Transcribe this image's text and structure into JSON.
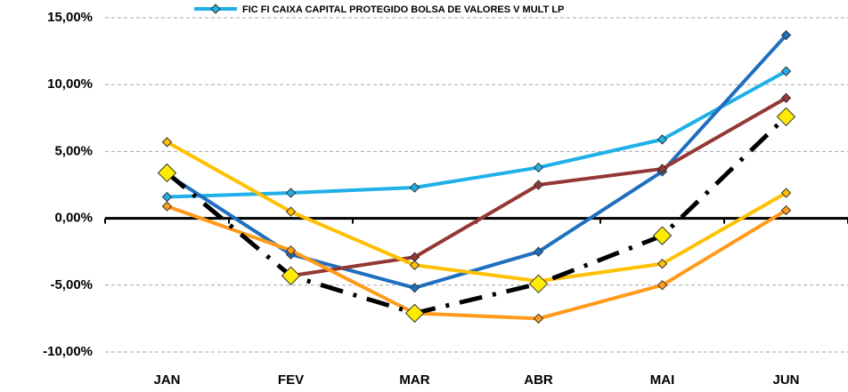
{
  "chart_data": {
    "type": "line",
    "categories": [
      "JAN",
      "FEV",
      "MAR",
      "ABR",
      "MAI",
      "JUN"
    ],
    "series": [
      {
        "name": "FIC FI CAIXA CAPITAL PROTEGIDO BOLSA DE VALORES V MULT LP",
        "color": "#1fb0e8",
        "values": [
          1.6,
          1.9,
          2.3,
          3.8,
          5.9,
          11.0
        ]
      },
      {
        "color": "#1f6fbf",
        "values": [
          3.3,
          -2.7,
          -5.2,
          -2.5,
          3.5,
          13.7
        ]
      },
      {
        "color": "#953735",
        "values": [
          null,
          -4.3,
          -2.9,
          2.5,
          3.7,
          9.0
        ]
      },
      {
        "color": "#ffc000",
        "values": [
          5.7,
          0.5,
          -3.5,
          -4.7,
          -3.4,
          1.9
        ]
      },
      {
        "color": "#ff9a1a",
        "values": [
          0.9,
          -2.4,
          -7.1,
          -7.5,
          -5.0,
          0.6
        ]
      },
      {
        "color": "#000000",
        "dash": "dashdot",
        "marker_color": "#ffeb00",
        "marker_size": "large",
        "values": [
          3.4,
          -4.3,
          -7.1,
          -4.9,
          -1.3,
          7.6
        ]
      }
    ],
    "ylim": [
      -10,
      15
    ],
    "yticks": [
      {
        "value": -10,
        "label": "-10,00%"
      },
      {
        "value": -5,
        "label": "-5,00%"
      },
      {
        "value": 0,
        "label": "0,00%"
      },
      {
        "value": 5,
        "label": "5,00%"
      },
      {
        "value": 10,
        "label": "10,00%"
      },
      {
        "value": 15,
        "label": "15,00%"
      }
    ],
    "grid": true,
    "legend": "top"
  }
}
